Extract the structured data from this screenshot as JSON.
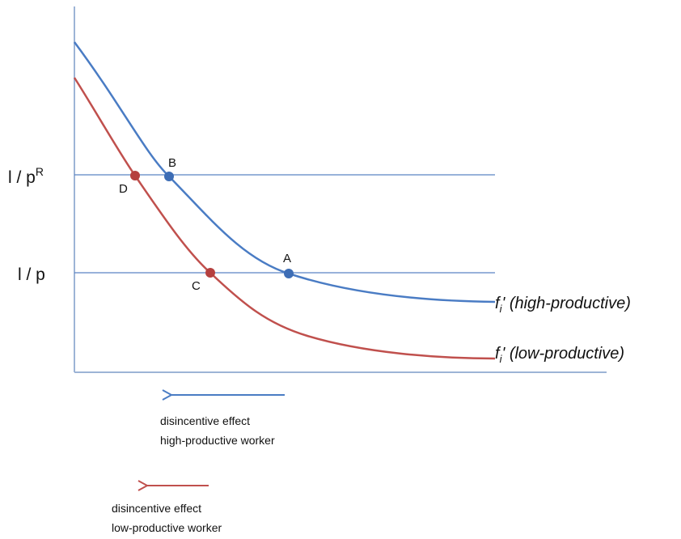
{
  "levels": [
    {
      "base": "l / p",
      "sup": "R"
    },
    {
      "base": "l / p"
    }
  ],
  "points": [
    "B",
    "D",
    "A",
    "C"
  ],
  "curves": [
    {
      "base": "f",
      "sub": "i",
      "rest": "' (high-productive)"
    },
    {
      "base": "f",
      "sub": "i",
      "rest": "' (low-productive)"
    }
  ],
  "arrows": [
    {
      "lines": [
        "disincentive effect",
        "high-productive worker"
      ]
    },
    {
      "lines": [
        "disincentive effect",
        "low-productive worker"
      ]
    }
  ]
}
